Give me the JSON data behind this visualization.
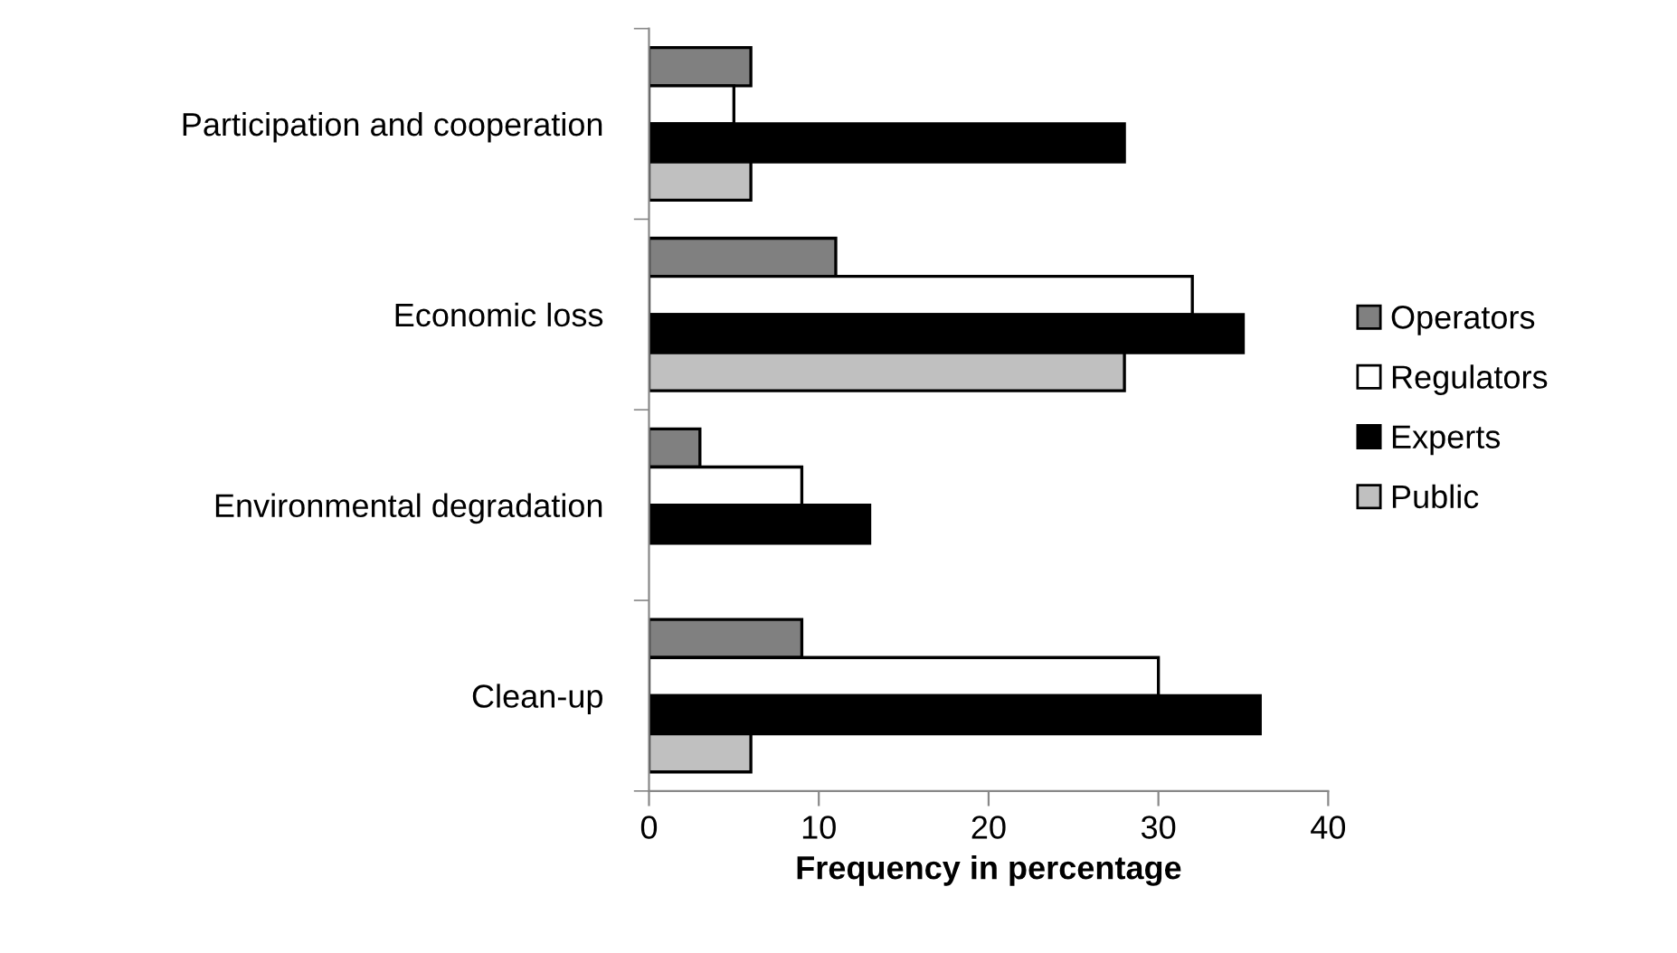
{
  "chart_data": {
    "type": "bar",
    "orientation": "horizontal",
    "xlabel": "Frequency in percentage",
    "categories": [
      "Participation and cooperation",
      "Economic loss",
      "Environmental degradation",
      "Clean-up"
    ],
    "series": [
      {
        "name": "Operators",
        "color": "#808080",
        "values": [
          6,
          11,
          3,
          9
        ]
      },
      {
        "name": "Regulators",
        "color": "#ffffff",
        "values": [
          5,
          32,
          9,
          30
        ]
      },
      {
        "name": "Experts",
        "color": "#000000",
        "values": [
          28,
          35,
          13,
          36
        ]
      },
      {
        "name": "Public",
        "color": "#c0c0c0",
        "values": [
          6,
          28,
          null,
          6
        ]
      }
    ],
    "xlim": [
      0,
      40
    ],
    "xticks": [
      0,
      10,
      20,
      30,
      40
    ],
    "grid": false,
    "legend": "right"
  }
}
